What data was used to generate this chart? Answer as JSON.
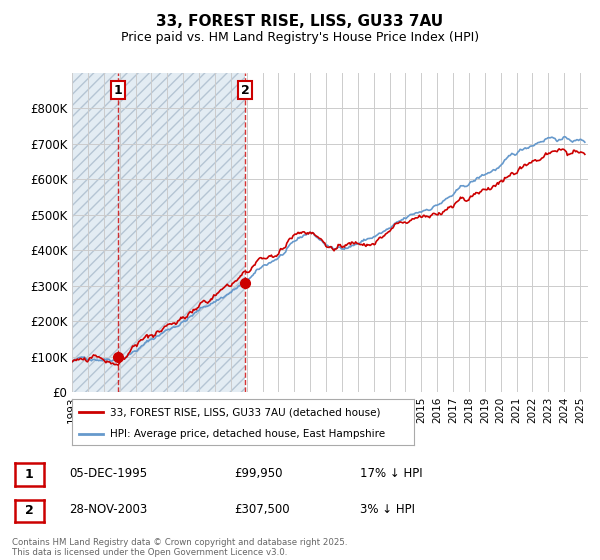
{
  "title": "33, FOREST RISE, LISS, GU33 7AU",
  "subtitle": "Price paid vs. HM Land Registry's House Price Index (HPI)",
  "xlim_start": 1993.0,
  "xlim_end": 2025.5,
  "ylim": [
    0,
    900000
  ],
  "yticks": [
    0,
    100000,
    200000,
    300000,
    400000,
    500000,
    600000,
    700000,
    800000
  ],
  "ytick_labels": [
    "£0",
    "£100K",
    "£200K",
    "£300K",
    "£400K",
    "£500K",
    "£600K",
    "£700K",
    "£800K"
  ],
  "hatch_end_year": 2003.9,
  "sale1_x": 1995.92,
  "sale1_y": 99950,
  "sale2_x": 2003.91,
  "sale2_y": 307500,
  "vline1_x": 1995.92,
  "vline2_x": 2003.91,
  "legend_entries": [
    "33, FOREST RISE, LISS, GU33 7AU (detached house)",
    "HPI: Average price, detached house, East Hampshire"
  ],
  "legend_colors": [
    "#cc0000",
    "#6699cc"
  ],
  "footer_text": "Contains HM Land Registry data © Crown copyright and database right 2025.\nThis data is licensed under the Open Government Licence v3.0.",
  "table_rows": [
    {
      "num": "1",
      "date": "05-DEC-1995",
      "price": "£99,950",
      "hpi": "17% ↓ HPI"
    },
    {
      "num": "2",
      "date": "28-NOV-2003",
      "price": "£307,500",
      "hpi": "3% ↓ HPI"
    }
  ],
  "background_color": "#ffffff",
  "grid_color": "#cccccc"
}
